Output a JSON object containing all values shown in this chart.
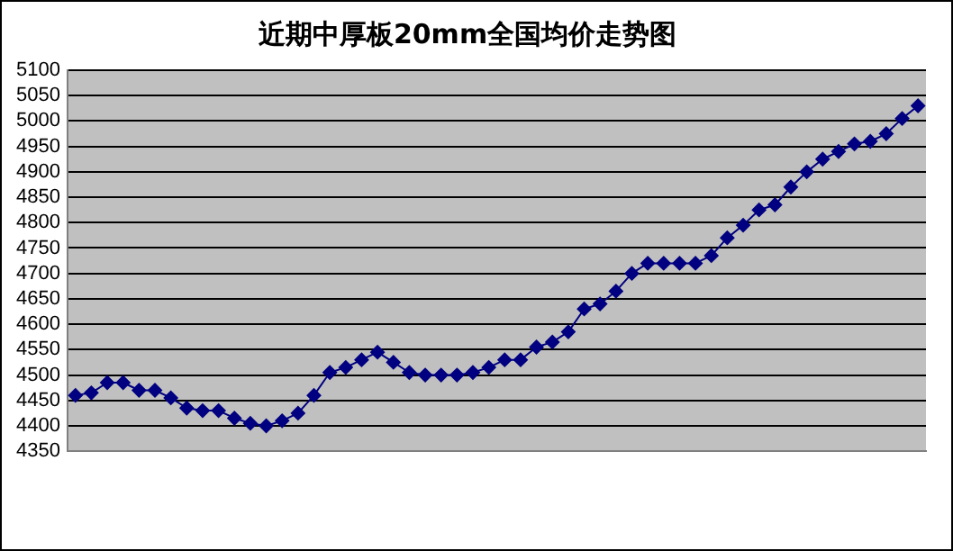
{
  "chart_data": {
    "type": "line",
    "title": "近期中厚板20mm全国均价走势图",
    "categories": [
      null,
      null,
      null,
      null,
      null,
      null,
      null,
      null,
      null,
      null,
      null,
      null,
      null,
      null,
      null,
      null,
      null,
      null,
      null,
      null,
      null,
      null,
      null,
      null,
      null,
      null,
      null,
      null,
      null,
      null,
      null,
      null,
      null,
      null,
      null,
      null,
      null,
      null,
      null,
      null,
      null,
      null,
      null,
      null,
      null,
      null,
      null,
      null,
      null,
      null,
      null,
      null,
      null,
      null
    ],
    "series": [
      {
        "color": "#000080",
        "values": [
          4460,
          4465,
          4485,
          4485,
          4470,
          4470,
          4455,
          4435,
          4430,
          4430,
          4415,
          4405,
          4400,
          4410,
          4425,
          4460,
          4505,
          4515,
          4530,
          4545,
          4525,
          4505,
          4500,
          4500,
          4500,
          4505,
          4515,
          4530,
          4530,
          4555,
          4565,
          4585,
          4630,
          4640,
          4665,
          4700,
          4720,
          4720,
          4720,
          4720,
          4735,
          4770,
          4795,
          4825,
          4835,
          4870,
          4900,
          4925,
          4940,
          4955,
          4960,
          4975,
          5005,
          5030
        ]
      }
    ],
    "ylim": [
      4350,
      5100
    ],
    "yticks": [
      4350,
      4400,
      4450,
      4500,
      4550,
      4600,
      4650,
      4700,
      4750,
      4800,
      4850,
      4900,
      4950,
      5000,
      5050,
      5100
    ],
    "grid": "y",
    "legend": false,
    "marker": "diamond",
    "line_style": "solid"
  }
}
